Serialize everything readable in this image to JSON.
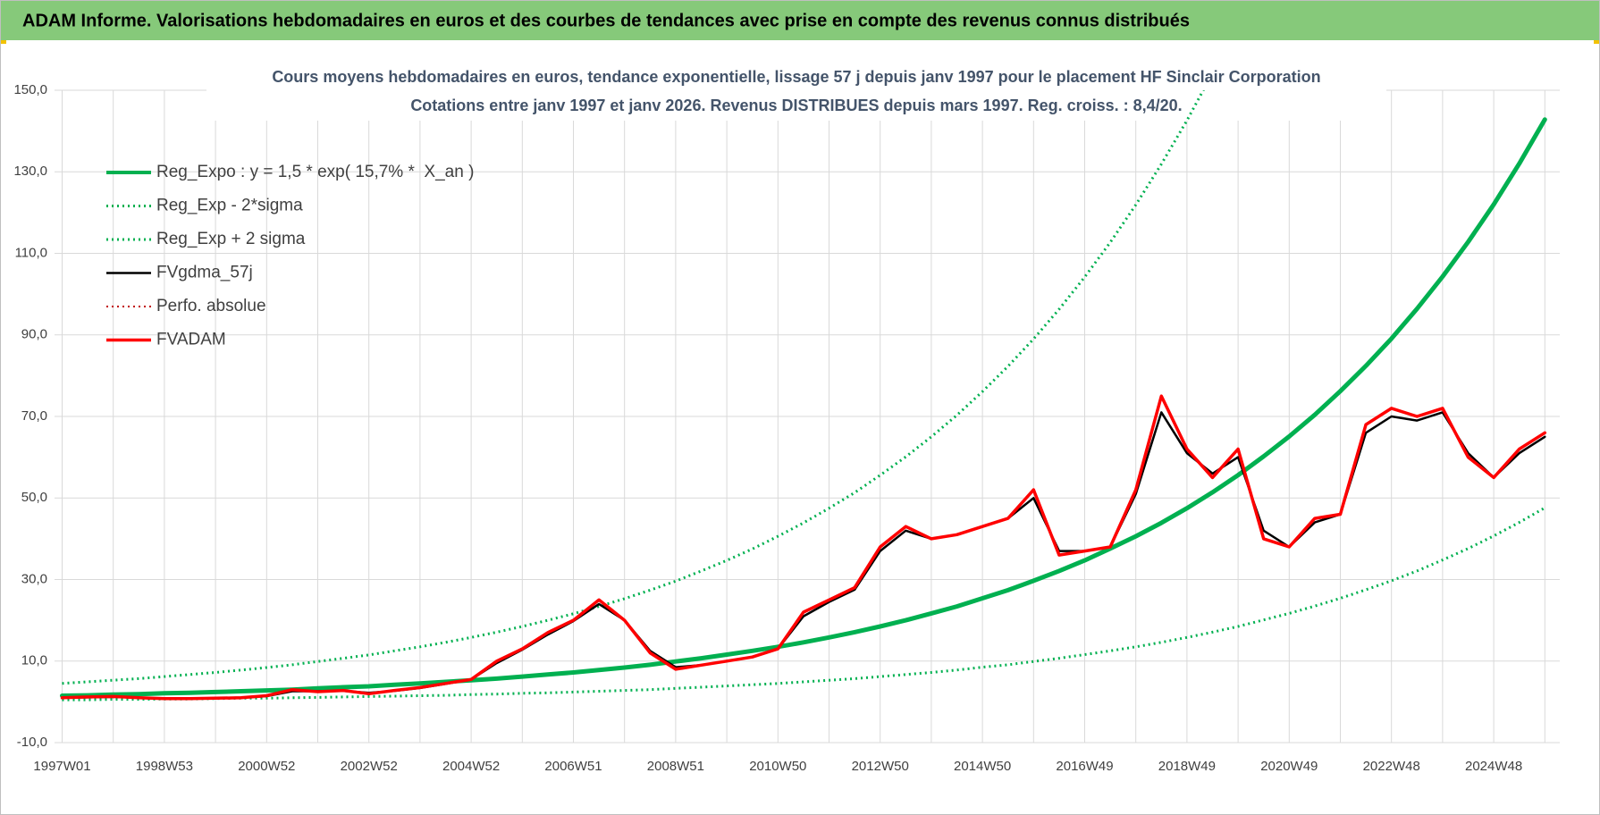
{
  "header": {
    "title": "ADAM Informe. Valorisations hebdomadaires en euros et des courbes de tendances avec prise en compte des revenus connus distribués"
  },
  "chart_data": {
    "type": "line",
    "title": "Cours moyens hebdomadaires en euros, tendance exponentielle, lissage 57 j depuis janv 1997 pour le placement HF Sinclair Corporation",
    "subtitle": "Cotations entre janv 1997 et janv 2026. Revenus DISTRIBUES depuis mars 1997. Reg. croiss. : 8,4/20.",
    "categories": [
      "1997W01",
      null,
      null,
      null,
      "1998W53",
      null,
      null,
      null,
      "2000W52",
      null,
      null,
      null,
      "2002W52",
      null,
      null,
      null,
      "2004W52",
      null,
      null,
      null,
      "2006W51",
      null,
      null,
      null,
      "2008W51",
      null,
      null,
      null,
      "2010W50",
      null,
      null,
      null,
      "2012W50",
      null,
      null,
      null,
      "2014W50",
      null,
      null,
      null,
      "2016W49",
      null,
      null,
      null,
      "2018W49",
      null,
      null,
      null,
      "2020W49",
      null,
      null,
      null,
      "2022W48",
      null,
      null,
      null,
      "2024W48",
      null,
      null
    ],
    "ylim": [
      -10,
      150
    ],
    "yticks": [
      {
        "value": -10,
        "label": "-10,0"
      },
      {
        "value": 10,
        "label": "10,0"
      },
      {
        "value": 30,
        "label": "30,0"
      },
      {
        "value": 50,
        "label": "50,0"
      },
      {
        "value": 70,
        "label": "70,0"
      },
      {
        "value": 90,
        "label": "90,0"
      },
      {
        "value": 110,
        "label": "110,0"
      },
      {
        "value": 130,
        "label": "130,0"
      },
      {
        "value": 150,
        "label": "150,0"
      }
    ],
    "grid": true,
    "legend": "upper left",
    "series": [
      {
        "name": "Reg_Expo : y = 1,5 * exp( 15,7% *  X_an )",
        "color": "#00b050",
        "line_style": "solid",
        "line_width": 5,
        "values": [
          1.5,
          1.6,
          1.8,
          1.9,
          2.1,
          2.2,
          2.4,
          2.6,
          2.8,
          3.0,
          3.3,
          3.6,
          3.8,
          4.2,
          4.5,
          4.9,
          5.3,
          5.7,
          6.2,
          6.7,
          7.2,
          7.8,
          8.4,
          9.1,
          9.9,
          10.7,
          11.6,
          12.5,
          13.5,
          14.6,
          15.8,
          17.1,
          18.5,
          20.0,
          21.7,
          23.4,
          25.4,
          27.4,
          29.7,
          32.1,
          34.7,
          37.6,
          40.6,
          43.9,
          47.5,
          51.4,
          55.6,
          60.2,
          65.1,
          70.4,
          76.2,
          82.4,
          89.1,
          96.4,
          104.3,
          112.8,
          122.0,
          132.0,
          142.8
        ]
      },
      {
        "name": "Reg_Exp - 2*sigma",
        "color": "#00b050",
        "line_style": "dotted",
        "line_width": 3,
        "values": [
          0.5,
          0.5,
          0.6,
          0.6,
          0.7,
          0.7,
          0.8,
          0.9,
          0.9,
          1.0,
          1.1,
          1.2,
          1.3,
          1.4,
          1.5,
          1.6,
          1.8,
          1.9,
          2.1,
          2.2,
          2.4,
          2.6,
          2.8,
          3.0,
          3.3,
          3.6,
          3.9,
          4.2,
          4.5,
          4.9,
          5.3,
          5.7,
          6.2,
          6.7,
          7.2,
          7.8,
          8.5,
          9.1,
          9.9,
          10.7,
          11.6,
          12.5,
          13.5,
          14.6,
          15.8,
          17.1,
          18.5,
          20.1,
          21.7,
          23.5,
          25.4,
          27.5,
          29.7,
          32.1,
          34.8,
          37.6,
          40.7,
          44.0,
          47.6
        ]
      },
      {
        "name": "Reg_Exp + 2 sigma",
        "color": "#00b050",
        "line_style": "dotted",
        "line_width": 3,
        "values": [
          4.5,
          4.9,
          5.3,
          5.7,
          6.2,
          6.7,
          7.2,
          7.8,
          8.4,
          9.1,
          9.9,
          10.7,
          11.5,
          12.5,
          13.5,
          14.6,
          15.8,
          17.1,
          18.5,
          20.0,
          21.6,
          23.4,
          25.3,
          27.4,
          29.6,
          32.1,
          34.7,
          37.5,
          40.6,
          43.9,
          47.5,
          51.3,
          55.6,
          60.1,
          65.0,
          70.3,
          76.1,
          82.3,
          89.0,
          96.3,
          104.2,
          112.7,
          121.9,
          131.9,
          142.6,
          154.2,
          null,
          null,
          null,
          null,
          null,
          null,
          null,
          null,
          null,
          null,
          null,
          null,
          null
        ]
      },
      {
        "name": "FVgdma_57j",
        "color": "#000000",
        "line_style": "solid",
        "line_width": 2.5,
        "values": [
          1.0,
          1.1,
          1.2,
          1.0,
          0.8,
          0.8,
          0.9,
          1.0,
          1.4,
          2.6,
          2.6,
          2.7,
          2.2,
          2.7,
          3.4,
          4.4,
          5.5,
          9.5,
          12.8,
          16.5,
          19.8,
          24,
          20,
          12.5,
          8.5,
          9,
          10,
          11,
          13,
          21,
          24.5,
          27.5,
          37,
          42,
          40,
          41,
          43,
          45,
          50,
          37,
          37,
          38,
          51,
          71,
          61,
          56,
          60,
          42,
          38,
          44,
          46,
          66,
          70,
          69,
          71,
          61,
          55,
          61,
          65
        ]
      },
      {
        "name": "Perfo. absolue",
        "color": "#c00000",
        "line_style": "dotted",
        "line_width": 2,
        "values": [
          1.0,
          1.2,
          1.3,
          1.0,
          0.8,
          0.8,
          0.9,
          1.0,
          1.5,
          3.0,
          2.5,
          2.8,
          2.0,
          2.8,
          3.5,
          4.5,
          5.5,
          10,
          13,
          17,
          20,
          25,
          20,
          12,
          8,
          9,
          10,
          11,
          13,
          22,
          25,
          28,
          38,
          43,
          40,
          41,
          43,
          45,
          52,
          36,
          37,
          38,
          52,
          75,
          62,
          55,
          62,
          40,
          38,
          45,
          46,
          68,
          72,
          70,
          72,
          60,
          55,
          62,
          66
        ]
      },
      {
        "name": "FVADAM",
        "color": "#ff0000",
        "line_style": "solid",
        "line_width": 3.5,
        "values": [
          1.0,
          1.2,
          1.3,
          1.0,
          0.8,
          0.8,
          0.9,
          1.0,
          1.5,
          3.0,
          2.5,
          2.8,
          2.0,
          2.8,
          3.5,
          4.5,
          5.5,
          10,
          13,
          17,
          20,
          25,
          20,
          12,
          8,
          9,
          10,
          11,
          13,
          22,
          25,
          28,
          38,
          43,
          40,
          41,
          43,
          45,
          52,
          36,
          37,
          38,
          52,
          75,
          62,
          55,
          62,
          40,
          38,
          45,
          46,
          68,
          72,
          70,
          72,
          60,
          55,
          62,
          66
        ]
      }
    ]
  }
}
